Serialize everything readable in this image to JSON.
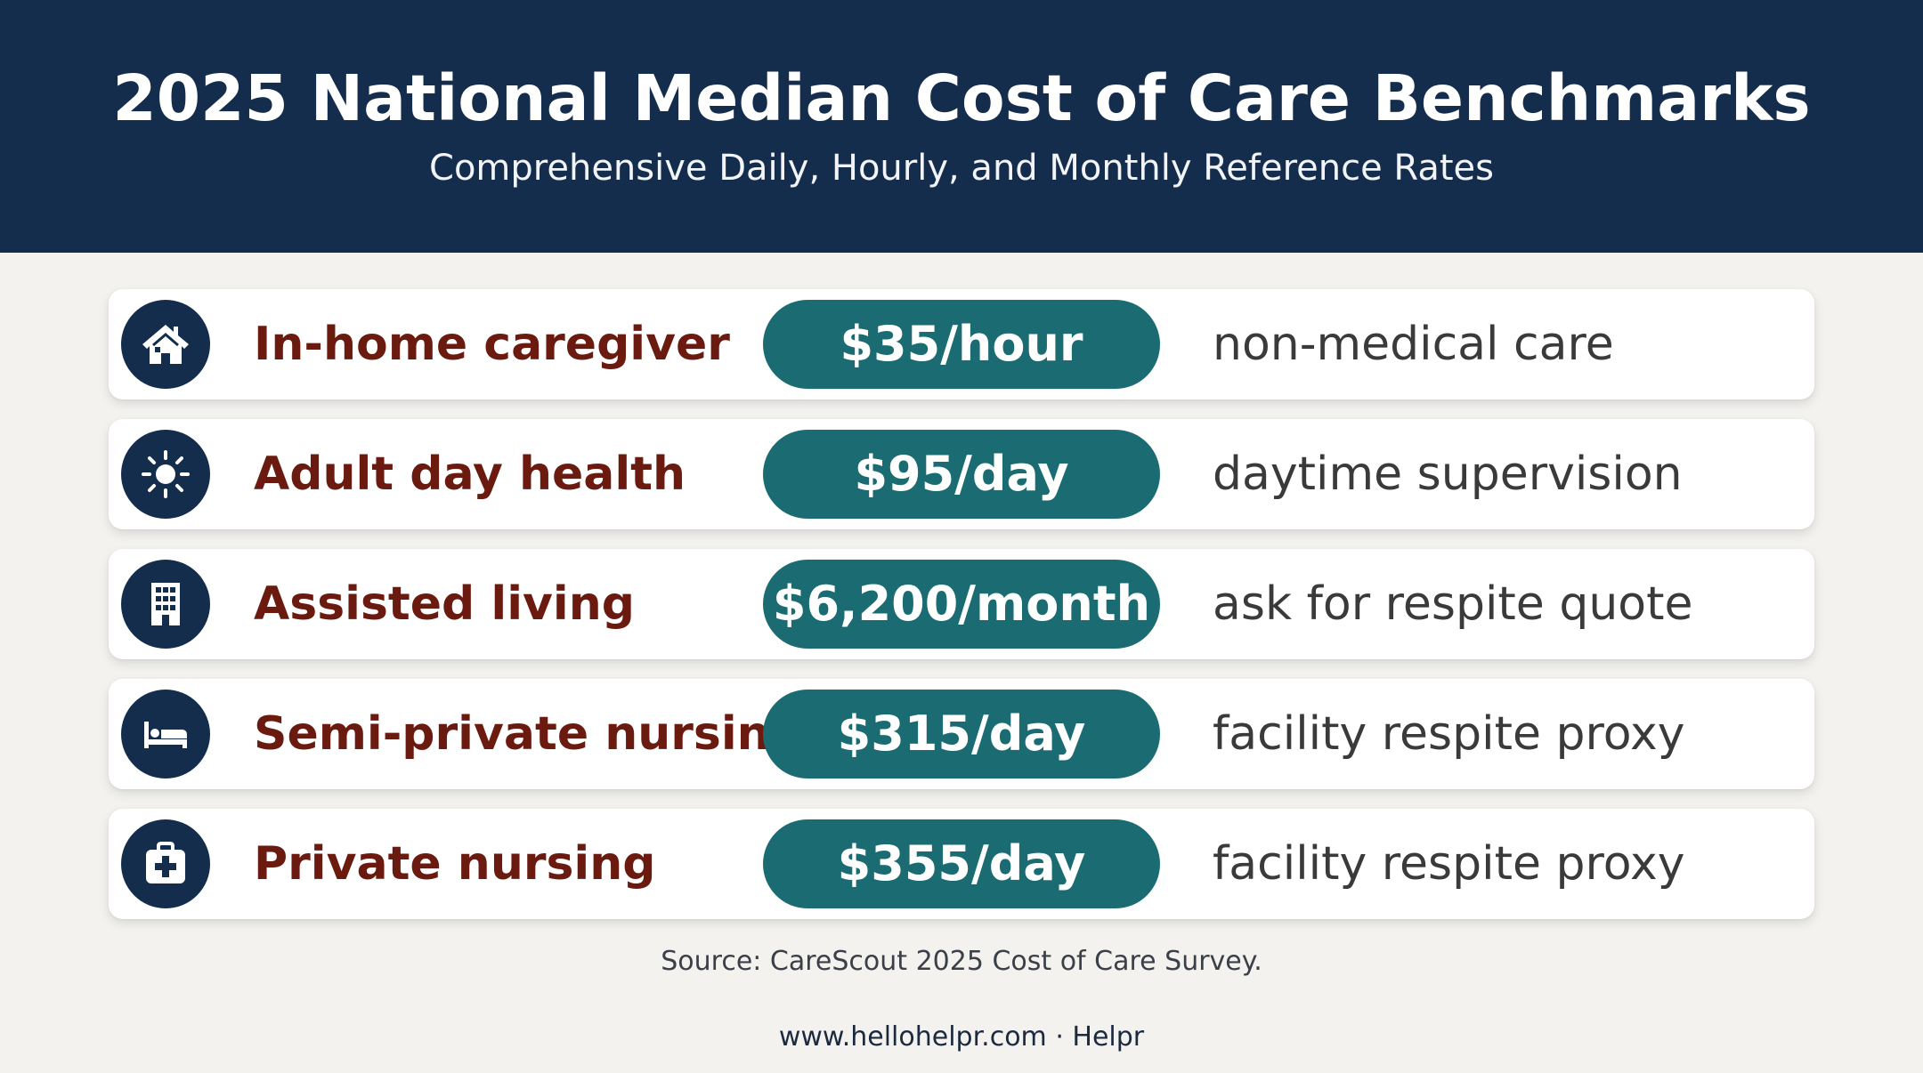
{
  "header": {
    "title": "2025 National Median Cost of Care Benchmarks",
    "subtitle": "Comprehensive Daily, Hourly, and Monthly Reference Rates"
  },
  "rows": [
    {
      "icon": "house-icon",
      "label": "In-home caregiver",
      "rate": "$35/hour",
      "note": "non-medical care"
    },
    {
      "icon": "sun-icon",
      "label": "Adult day health",
      "rate": "$95/day",
      "note": "daytime supervision"
    },
    {
      "icon": "building-icon",
      "label": "Assisted living",
      "rate": "$6,200/month",
      "note": "ask for respite quote"
    },
    {
      "icon": "bed-icon",
      "label": "Semi-private nursing",
      "rate": "$315/day",
      "note": "facility respite proxy"
    },
    {
      "icon": "medical-kit-icon",
      "label": "Private nursing",
      "rate": "$355/day",
      "note": "facility respite proxy"
    }
  ],
  "source": "Source: CareScout 2025 Cost of Care Survey.",
  "footer": "www.hellohelpr.com · Helpr",
  "colors": {
    "header_bg": "#142d4c",
    "label": "#6a1a0e",
    "pill": "#1b6c72",
    "page_bg": "#f3f2ef"
  }
}
